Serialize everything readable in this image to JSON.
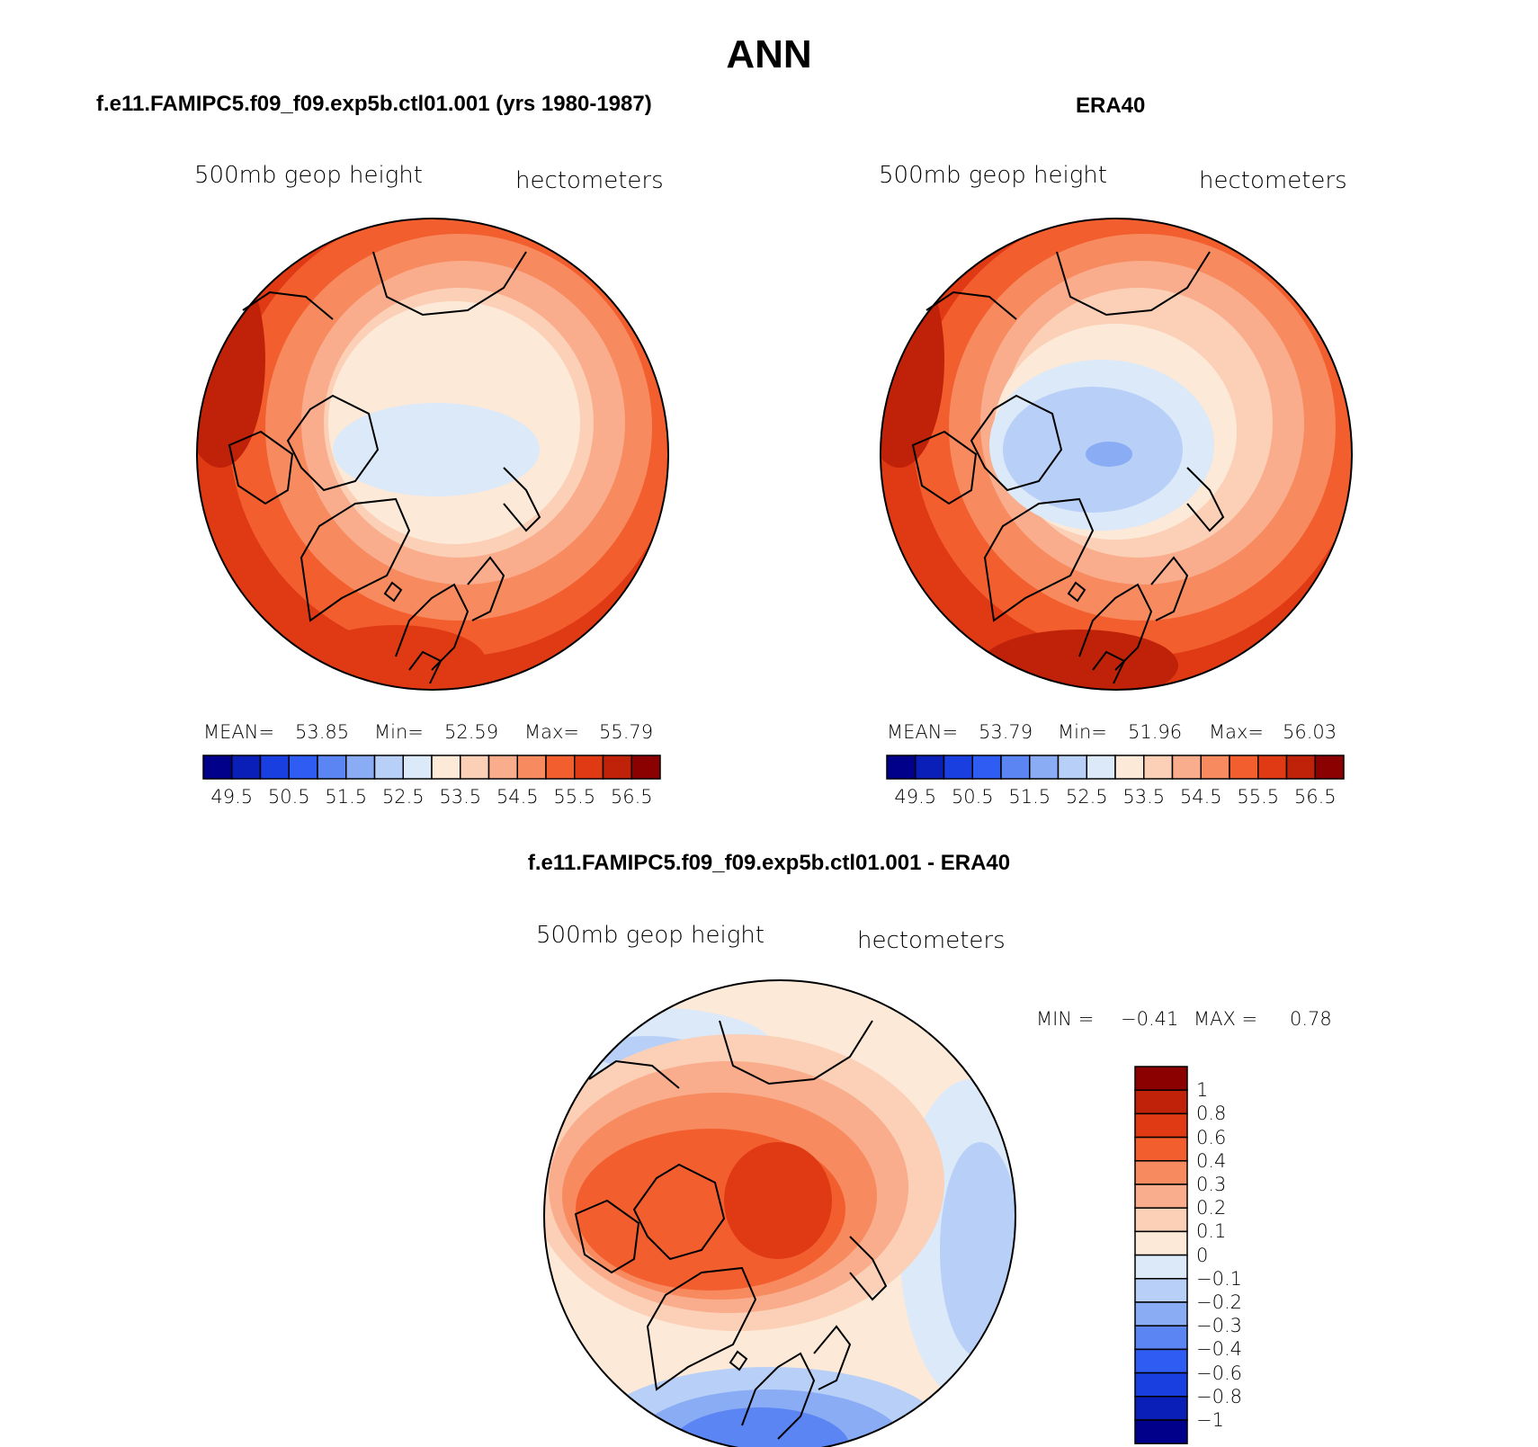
{
  "page": {
    "title": "ANN",
    "left_title": "f.e11.FAMIPC5.f09_f09.exp5b.ctl01.001 (yrs 1980-1987)",
    "right_title": "ERA40",
    "diff_title": "f.e11.FAMIPC5.f09_f09.exp5b.ctl01.001 - ERA40"
  },
  "panels": [
    {
      "id": "model",
      "variable": "500mb geop height",
      "units": "hectometers",
      "stats": {
        "mean_label": "MEAN=",
        "mean": "53.85",
        "min_label": "Min=",
        "min": "52.59",
        "max_label": "Max=",
        "max": "55.79"
      }
    },
    {
      "id": "era40",
      "variable": "500mb geop height",
      "units": "hectometers",
      "stats": {
        "mean_label": "MEAN=",
        "mean": "53.79",
        "min_label": "Min=",
        "min": "51.96",
        "max_label": "Max=",
        "max": "56.03"
      }
    },
    {
      "id": "diff",
      "variable": "500mb geop height",
      "units": "hectometers",
      "stats": {
        "min_label": "MIN =",
        "min": "−0.41",
        "max_label": "MAX =",
        "max": "0.78"
      }
    }
  ],
  "colorbar_horizontal": {
    "colors": [
      "#00008b",
      "#0a1fb8",
      "#1a3fe0",
      "#2f5cf2",
      "#5a85f2",
      "#8aacf5",
      "#b8cff8",
      "#dbe9f8",
      "#fce9d8",
      "#fbd0b6",
      "#f9ad8c",
      "#f78a5e",
      "#f35e2f",
      "#e03a14",
      "#bf2209",
      "#8b0000"
    ],
    "tick_labels": [
      "49.5",
      "50.5",
      "51.5",
      "52.5",
      "53.5",
      "54.5",
      "55.5",
      "56.5"
    ]
  },
  "colorbar_vertical": {
    "colors": [
      "#8b0000",
      "#bf2209",
      "#e03a14",
      "#f35e2f",
      "#f78a5e",
      "#f9ad8c",
      "#fbd0b6",
      "#fce9d8",
      "#dbe9f8",
      "#b8cff8",
      "#8aacf5",
      "#5a85f2",
      "#2f5cf2",
      "#1a3fe0",
      "#0a1fb8",
      "#00008b"
    ],
    "tick_labels": [
      "1",
      "0.8",
      "0.6",
      "0.4",
      "0.3",
      "0.2",
      "0.1",
      "0",
      "−0.1",
      "−0.2",
      "−0.3",
      "−0.4",
      "−0.6",
      "−0.8",
      "−1"
    ]
  }
}
